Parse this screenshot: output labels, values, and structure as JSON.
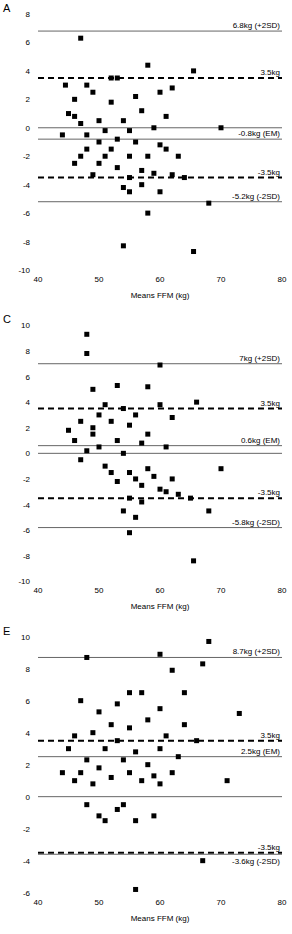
{
  "chart_data": [
    {
      "type": "scatter",
      "title": "A",
      "x_label": "Means FFM (kg)",
      "color": "#000000",
      "marker": "square",
      "xlim": [
        40,
        80
      ],
      "xticks": [
        40,
        50,
        60,
        70,
        80
      ],
      "ylim": [
        -10,
        8
      ],
      "yticks": [
        8,
        6,
        4,
        2,
        0,
        -2,
        -4,
        -6,
        -8,
        -10
      ],
      "x": [
        47,
        58,
        52,
        53,
        65.5,
        44.5,
        48,
        49,
        46,
        56,
        60,
        62,
        52,
        57,
        45,
        46,
        50,
        54,
        61,
        47,
        55,
        59,
        70,
        44,
        48,
        51,
        53,
        50,
        52,
        56,
        60,
        48,
        47,
        51,
        55,
        58,
        46,
        50,
        53,
        57,
        59,
        62,
        49,
        55,
        64,
        54,
        55,
        57,
        60,
        58,
        68,
        54,
        65.5,
        61,
        63
      ],
      "values": [
        6.3,
        4.4,
        3.5,
        3.5,
        4.0,
        3.0,
        3.0,
        2.5,
        2.0,
        2.2,
        2.5,
        2.8,
        1.8,
        1.2,
        1.0,
        0.8,
        0.5,
        0.5,
        0.8,
        0.3,
        -0.2,
        0,
        0,
        -0.5,
        -0.5,
        -0.2,
        -0.8,
        -1.0,
        -1.5,
        -1.0,
        -1.2,
        -1.5,
        -2.0,
        -2.0,
        -2.0,
        -2.0,
        -2.5,
        -2.5,
        -2.8,
        -3.0,
        -3.2,
        -3.3,
        -3.3,
        -3.5,
        -3.5,
        -4.2,
        -4.5,
        -4.0,
        -4.5,
        -6.0,
        -5.3,
        -8.3,
        -8.7,
        -1.5,
        -2.0
      ],
      "reference_lines": [
        {
          "value": 6.8,
          "label": "6.8kg (+2SD)",
          "line_style": "solid"
        },
        {
          "value": 3.5,
          "label": "3.5kg",
          "line_style": "dashed"
        },
        {
          "value": 0,
          "line_style": "solid"
        },
        {
          "value": -0.8,
          "label": "-0.8kg (EM)",
          "line_style": "solid"
        },
        {
          "value": -3.5,
          "label": "-3.5kg",
          "line_style": "dashed"
        },
        {
          "value": -5.2,
          "label": "-5.2kg (-2SD)",
          "line_style": "solid"
        }
      ]
    },
    {
      "type": "scatter",
      "title": "C",
      "x_label": "Means FFM (kg)",
      "color": "#000000",
      "marker": "square",
      "xlim": [
        40,
        80
      ],
      "xticks": [
        40,
        50,
        60,
        70,
        80
      ],
      "ylim": [
        -10,
        10
      ],
      "yticks": [
        10,
        8,
        6,
        4,
        2,
        0,
        -2,
        -4,
        -6,
        -8,
        -10
      ],
      "x": [
        48,
        48,
        60,
        53,
        58,
        49,
        66,
        51,
        54,
        60,
        50,
        56,
        62,
        47,
        52,
        55,
        45,
        49,
        58,
        46,
        53,
        57,
        50,
        61,
        48,
        54,
        51,
        52,
        55,
        58,
        70,
        47,
        59,
        56,
        57,
        60,
        53,
        61,
        63,
        55,
        57,
        65,
        54,
        56,
        68,
        55,
        65.5,
        62,
        49
      ],
      "values": [
        9.3,
        7.8,
        6.9,
        5.3,
        5.2,
        5.0,
        4.0,
        3.8,
        3.5,
        3.8,
        3.0,
        3.0,
        2.8,
        2.5,
        2.5,
        2.2,
        1.8,
        1.5,
        1.5,
        1.0,
        1.0,
        0.8,
        0.5,
        0.5,
        0.2,
        0.0,
        -1.0,
        -1.5,
        -1.5,
        -1.2,
        -1.2,
        -0.5,
        -1.8,
        -2.0,
        -2.5,
        -2.8,
        -2.2,
        -3.0,
        -3.2,
        -3.5,
        -3.8,
        -3.5,
        -4.5,
        -5.0,
        -4.5,
        -6.2,
        -8.4,
        -2.0,
        2.0
      ],
      "reference_lines": [
        {
          "value": 7,
          "label": "7kg (+2SD)",
          "line_style": "solid"
        },
        {
          "value": 3.5,
          "label": "3.5kg",
          "line_style": "dashed"
        },
        {
          "value": 0.6,
          "label": "0.6kg (EM)",
          "line_style": "solid"
        },
        {
          "value": 0,
          "line_style": "solid"
        },
        {
          "value": -3.5,
          "label": "-3.5kg",
          "line_style": "dashed"
        },
        {
          "value": -5.8,
          "label": "-5.8kg (-2SD)",
          "line_style": "solid"
        }
      ]
    },
    {
      "type": "scatter",
      "title": "E",
      "x_label": "Means FFM (kg)",
      "color": "#000000",
      "marker": "square",
      "xlim": [
        40,
        80
      ],
      "xticks": [
        40,
        50,
        60,
        70,
        80
      ],
      "ylim": [
        -6,
        10
      ],
      "yticks": [
        10,
        8,
        6,
        4,
        2,
        0,
        -2,
        -4,
        -6
      ],
      "x": [
        48,
        60,
        68,
        62,
        67,
        47,
        55,
        57,
        53,
        64,
        50,
        60,
        73,
        52,
        55,
        58,
        64,
        46,
        49,
        61,
        53,
        66,
        45,
        51,
        56,
        60,
        63,
        48,
        54,
        58,
        44,
        47,
        50,
        52,
        55,
        59,
        62,
        71,
        46,
        49,
        57,
        48,
        50,
        51,
        53,
        56,
        59,
        60,
        67,
        56,
        54
      ],
      "values": [
        8.7,
        8.9,
        9.7,
        7.9,
        8.3,
        6.0,
        6.5,
        6.5,
        5.8,
        6.5,
        5.3,
        5.5,
        5.2,
        4.5,
        4.3,
        4.8,
        4.5,
        3.8,
        4.0,
        3.8,
        3.5,
        3.5,
        3.0,
        3.0,
        2.8,
        3.0,
        2.5,
        2.3,
        2.3,
        2.0,
        1.5,
        1.5,
        1.8,
        1.2,
        1.5,
        1.3,
        1.5,
        1.0,
        1.0,
        0.8,
        1.0,
        -0.5,
        -1.2,
        -1.5,
        -0.8,
        -1.5,
        -1.2,
        0.8,
        -4.0,
        -5.8,
        -0.5
      ],
      "reference_lines": [
        {
          "value": 8.7,
          "label": "8.7kg (+2SD)",
          "line_style": "solid"
        },
        {
          "value": 3.5,
          "label": "3.5kg",
          "line_style": "dashed"
        },
        {
          "value": 2.5,
          "label": "2.5kg (EM)",
          "line_style": "solid"
        },
        {
          "value": 0,
          "line_style": "solid"
        },
        {
          "value": -3.5,
          "label": "-3.5kg",
          "line_style": "dashed"
        },
        {
          "value": -3.6,
          "label": "-3.6kg (-2SD)",
          "line_style": "solid"
        }
      ]
    }
  ]
}
